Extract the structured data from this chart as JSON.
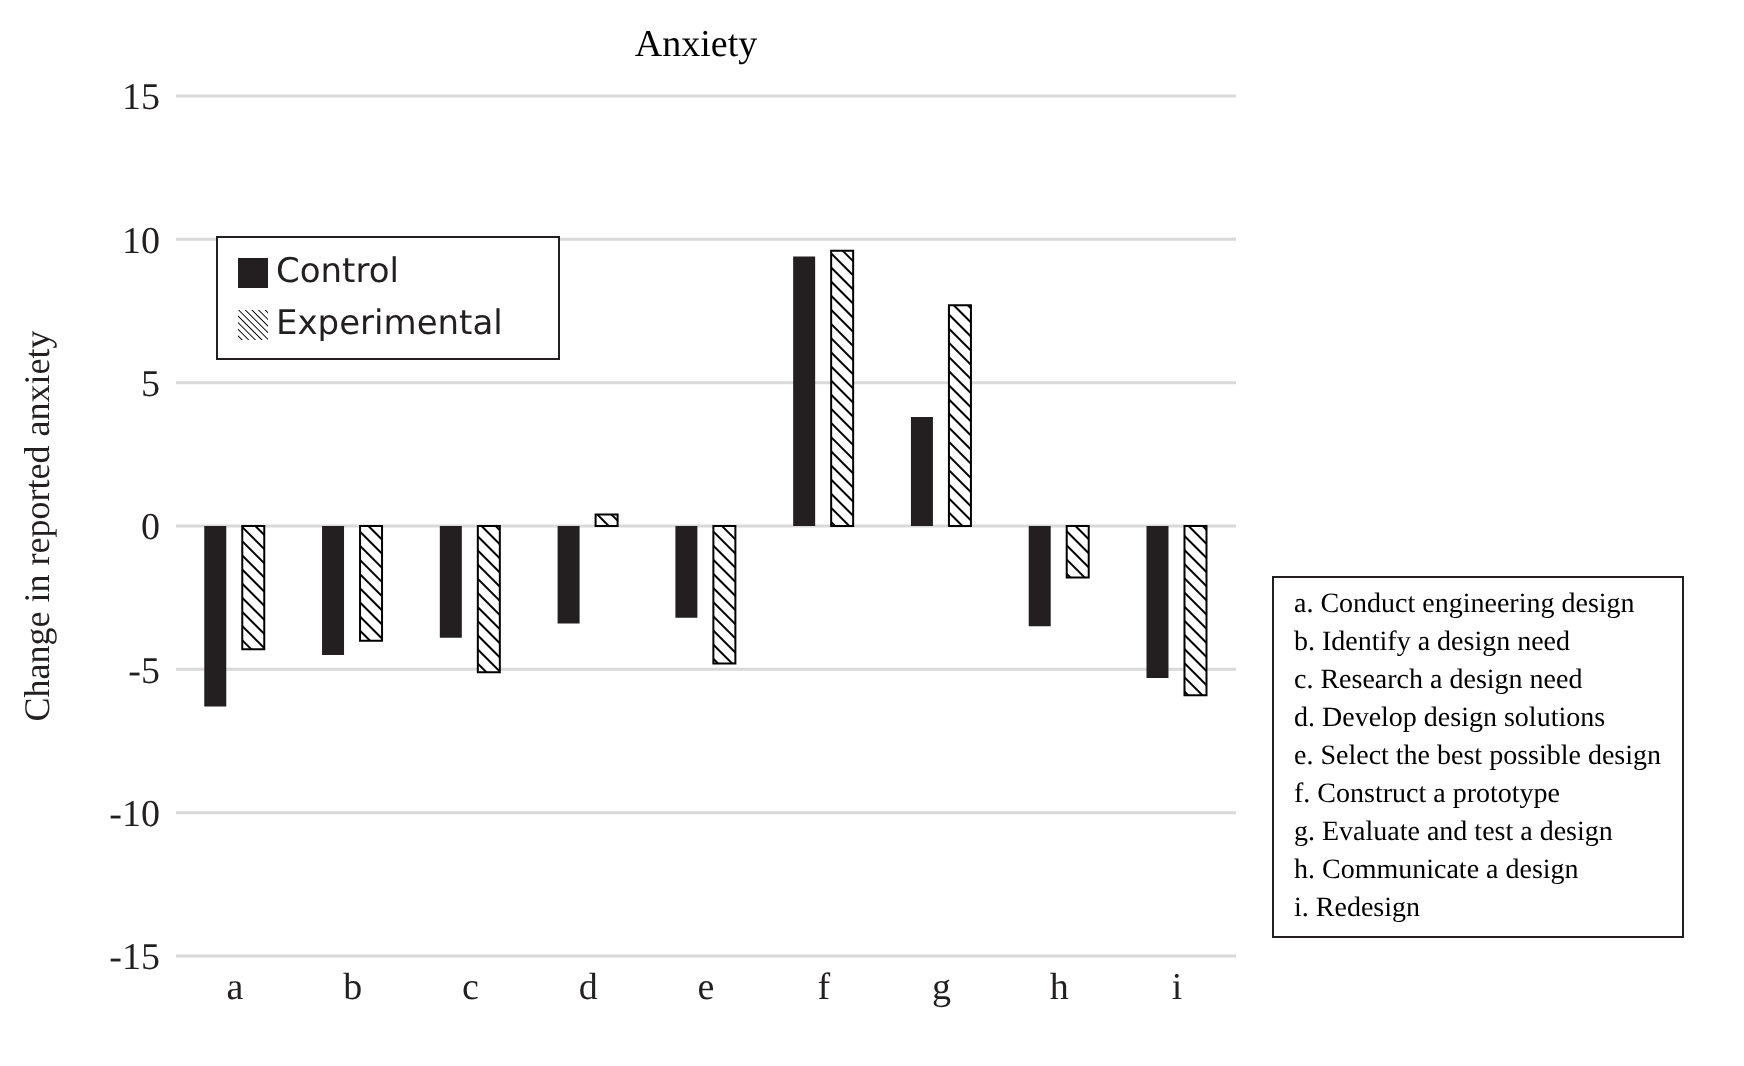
{
  "chart_data": {
    "type": "bar",
    "title": "Anxiety",
    "ylabel": "Change in reported anxiety",
    "categories": [
      "a",
      "b",
      "c",
      "d",
      "e",
      "f",
      "g",
      "h",
      "i"
    ],
    "series": [
      {
        "name": "Control",
        "color": "#231f20",
        "values": [
          -6.3,
          -4.5,
          -3.9,
          -3.4,
          -3.2,
          9.4,
          3.8,
          -3.5,
          -5.3
        ]
      },
      {
        "name": "Experimental",
        "color": "#000000",
        "values": [
          -4.3,
          -4.0,
          -5.1,
          0.4,
          -4.8,
          9.6,
          7.7,
          -1.8,
          -5.9
        ]
      }
    ],
    "ylim": [
      -15,
      15
    ],
    "yticks": [
      15,
      10,
      5,
      0,
      -5,
      -10,
      -15
    ],
    "grid": "y",
    "legend": "top left",
    "annotations": [
      "a. Conduct engineering design",
      "b. Identify a design need",
      "c. Research a design need",
      "d. Develop design solutions",
      "e. Select the best possible design",
      "f. Construct a prototype",
      "g. Evaluate and test a design",
      "h. Communicate a design",
      "i. Redesign"
    ]
  }
}
